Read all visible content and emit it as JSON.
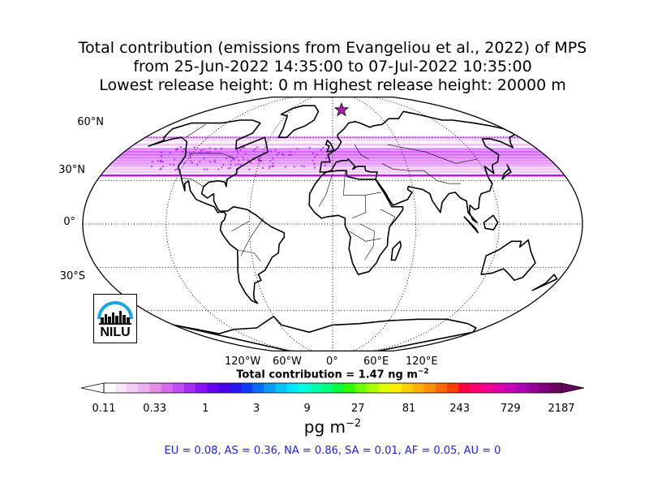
{
  "title": {
    "line1": "Total contribution (emissions from Evangeliou et al., 2022) of MPS",
    "line2": "from 25-Jun-2022 14:35:00 to 07-Jul-2022 10:35:00",
    "line3": "Lowest release height: 0 m       Highest release height: 20000 m"
  },
  "map": {
    "projection": "robinson",
    "lat_labels": [
      "60°N",
      "30°N",
      "0°",
      "30°S"
    ],
    "lon_labels": [
      "120°W",
      "60°W",
      "0°",
      "60°E",
      "120°E"
    ],
    "marker": "release-point-star",
    "marker_color": "#b01ab0",
    "plume_color": "#c000ff",
    "plume_band": "latitude band approx. 35°N–60°N"
  },
  "total": {
    "prefix": "Total contribution = 1.47 ng m",
    "exponent": "−2"
  },
  "colorbar": {
    "ticks": [
      "0.11",
      "0.33",
      "1",
      "3",
      "9",
      "27",
      "81",
      "243",
      "729",
      "2187"
    ],
    "colors": [
      "#ffffff",
      "#fbe6fb",
      "#f5ccf5",
      "#efb0ef",
      "#e48ee4",
      "#d86cf0",
      "#c44cf5",
      "#a82cf8",
      "#8a12f8",
      "#6a00f0",
      "#4a00e8",
      "#2a14f0",
      "#0a3cff",
      "#0a6cff",
      "#0a9cff",
      "#00c4ff",
      "#00e6ff",
      "#00ffe0",
      "#00ffb0",
      "#00ff80",
      "#00ff40",
      "#30ff00",
      "#70ff00",
      "#a8ff00",
      "#e0ff00",
      "#fff000",
      "#ffd000",
      "#ffb000",
      "#ff9000",
      "#ff6800",
      "#ff3c00",
      "#ff0040",
      "#ff0070",
      "#f00090",
      "#e000a8",
      "#c800b8",
      "#b000b8",
      "#980098",
      "#800080",
      "#6a0060"
    ],
    "unit_base": "pg m",
    "unit_exp": "−2"
  },
  "regions": "EU = 0.08,  AS = 0.36,  NA = 0.86,  SA = 0.01,  AF = 0.05,  AU = 0",
  "logo": {
    "text": "NILU",
    "color": "#1aa3e8"
  }
}
